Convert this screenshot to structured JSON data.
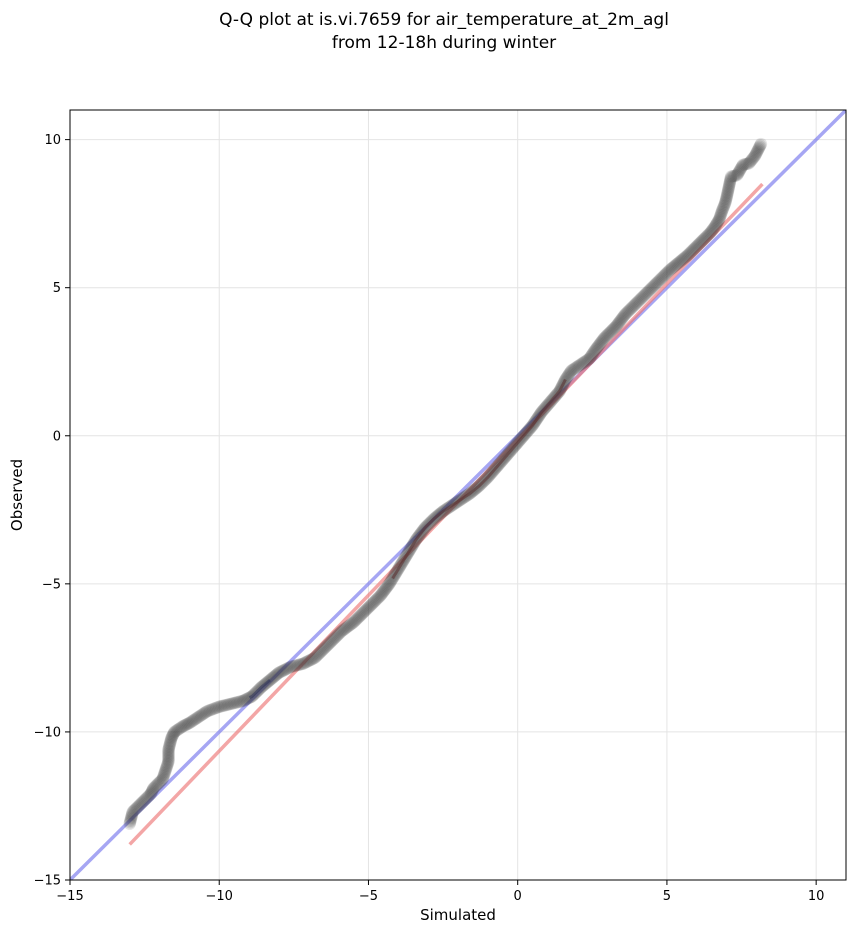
{
  "chart_data": {
    "type": "scatter",
    "title_lines": [
      "Q-Q plot at is.vi.7659 for air_temperature_at_2m_agl",
      "from 12-18h during winter"
    ],
    "xlabel": "Simulated",
    "ylabel": "Observed",
    "xlim": [
      -15,
      11
    ],
    "ylim": [
      -15,
      11
    ],
    "xticks": [
      -15,
      -10,
      -5,
      0,
      5,
      10
    ],
    "yticks": [
      -15,
      -10,
      -5,
      0,
      5,
      10
    ],
    "xtick_labels": [
      "−15",
      "−10",
      "−5",
      "0",
      "5",
      "10"
    ],
    "ytick_labels": [
      "−15",
      "−10",
      "−5",
      "0",
      "5",
      "10"
    ],
    "grid": true,
    "colors": {
      "points": "#333333",
      "identity_line": "#7777ee",
      "fit_line": "#ee7777",
      "accent_low": "#2233aa",
      "accent_mid": "#aa2222"
    },
    "identity_line": {
      "x": [
        -15,
        11
      ],
      "y": [
        -15,
        11
      ]
    },
    "fit_line": {
      "x": [
        -13,
        8.2
      ],
      "y": [
        -13.8,
        8.5
      ]
    },
    "curve": [
      [
        -13.0,
        -13.1
      ],
      [
        -12.9,
        -12.7
      ],
      [
        -12.3,
        -12.1
      ],
      [
        -12.2,
        -11.9
      ],
      [
        -11.9,
        -11.6
      ],
      [
        -11.7,
        -11.0
      ],
      [
        -11.7,
        -10.6
      ],
      [
        -11.6,
        -10.2
      ],
      [
        -11.5,
        -10.0
      ],
      [
        -11.2,
        -9.8
      ],
      [
        -11.0,
        -9.7
      ],
      [
        -10.7,
        -9.5
      ],
      [
        -10.4,
        -9.3
      ],
      [
        -10.0,
        -9.15
      ],
      [
        -9.6,
        -9.05
      ],
      [
        -9.2,
        -8.95
      ],
      [
        -8.9,
        -8.8
      ],
      [
        -8.6,
        -8.5
      ],
      [
        -8.3,
        -8.25
      ],
      [
        -8.0,
        -8.0
      ],
      [
        -7.6,
        -7.8
      ],
      [
        -7.2,
        -7.7
      ],
      [
        -6.8,
        -7.5
      ],
      [
        -6.5,
        -7.2
      ],
      [
        -6.2,
        -6.9
      ],
      [
        -5.9,
        -6.6
      ],
      [
        -5.5,
        -6.3
      ],
      [
        -5.2,
        -6.0
      ],
      [
        -4.9,
        -5.7
      ],
      [
        -4.6,
        -5.4
      ],
      [
        -4.3,
        -5.0
      ],
      [
        -4.0,
        -4.5
      ],
      [
        -3.7,
        -4.0
      ],
      [
        -3.4,
        -3.5
      ],
      [
        -3.1,
        -3.1
      ],
      [
        -2.8,
        -2.8
      ],
      [
        -2.5,
        -2.55
      ],
      [
        -2.2,
        -2.35
      ],
      [
        -1.9,
        -2.15
      ],
      [
        -1.6,
        -1.95
      ],
      [
        -1.3,
        -1.7
      ],
      [
        -1.0,
        -1.4
      ],
      [
        -0.7,
        -1.05
      ],
      [
        -0.4,
        -0.7
      ],
      [
        -0.1,
        -0.35
      ],
      [
        0.2,
        0.0
      ],
      [
        0.5,
        0.35
      ],
      [
        0.8,
        0.8
      ],
      [
        1.1,
        1.15
      ],
      [
        1.4,
        1.5
      ],
      [
        1.6,
        1.9
      ],
      [
        1.8,
        2.2
      ],
      [
        2.1,
        2.4
      ],
      [
        2.4,
        2.6
      ],
      [
        2.6,
        2.9
      ],
      [
        2.9,
        3.3
      ],
      [
        3.3,
        3.7
      ],
      [
        3.6,
        4.1
      ],
      [
        3.9,
        4.4
      ],
      [
        4.2,
        4.7
      ],
      [
        4.5,
        5.0
      ],
      [
        4.8,
        5.3
      ],
      [
        5.1,
        5.6
      ],
      [
        5.4,
        5.85
      ],
      [
        5.7,
        6.1
      ],
      [
        5.95,
        6.35
      ],
      [
        6.2,
        6.6
      ],
      [
        6.45,
        6.85
      ],
      [
        6.6,
        7.05
      ],
      [
        6.75,
        7.3
      ],
      [
        6.85,
        7.6
      ],
      [
        6.95,
        7.85
      ],
      [
        7.0,
        8.05
      ],
      [
        7.15,
        8.75
      ],
      [
        7.35,
        8.8
      ],
      [
        7.55,
        9.15
      ],
      [
        7.75,
        9.2
      ],
      [
        7.95,
        9.45
      ],
      [
        8.15,
        9.85
      ]
    ]
  }
}
